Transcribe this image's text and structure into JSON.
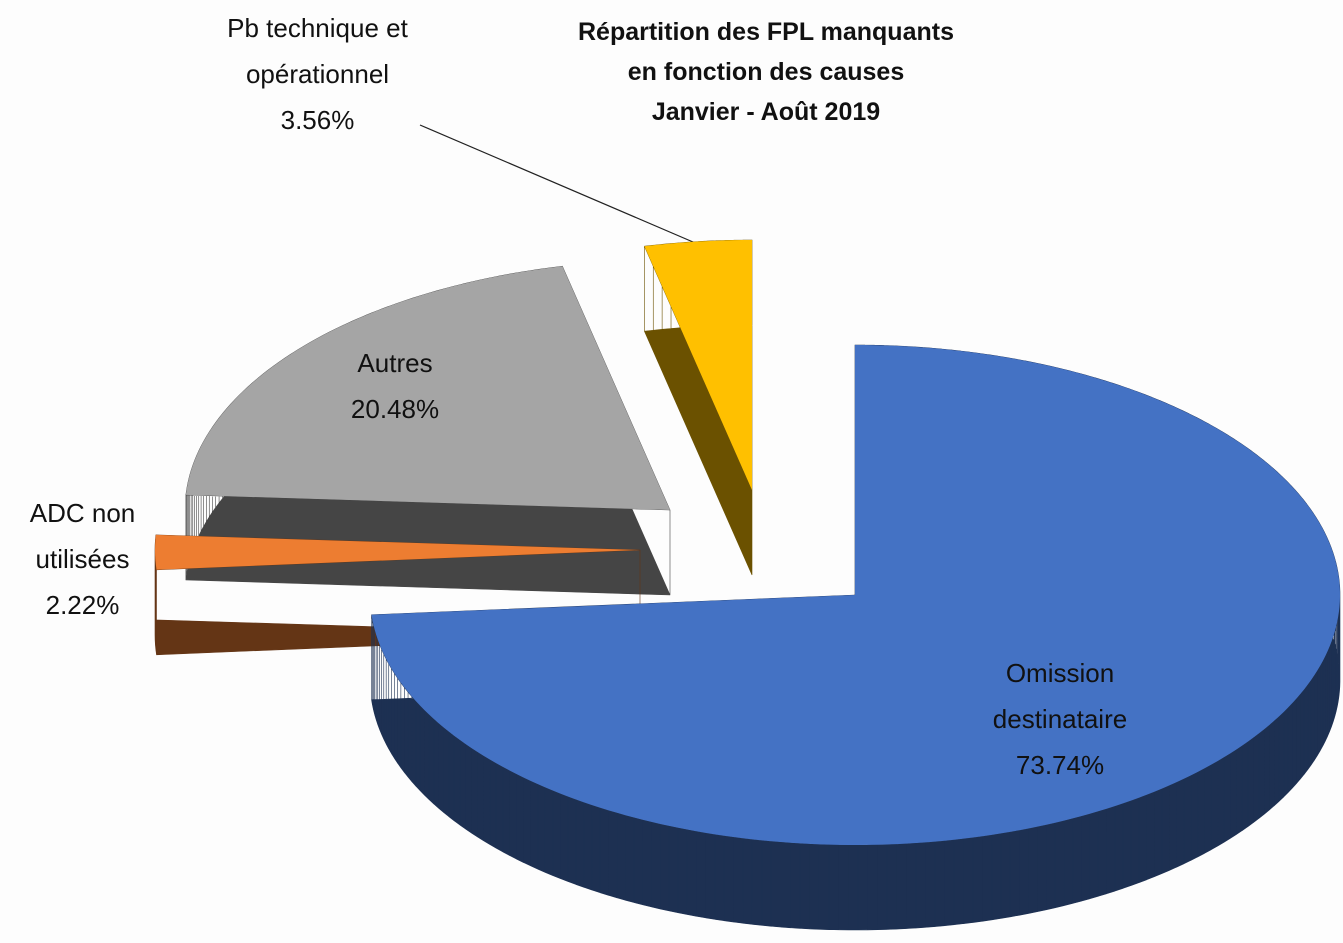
{
  "chart_data": {
    "type": "pie",
    "title": [
      "Répartition des FPL manquants",
      "en fonction des causes",
      "Janvier - Août 2019"
    ],
    "categories": [
      "Omission destinataire",
      "ADC non utilisées",
      "Autres",
      "Pb technique et opérationnel"
    ],
    "values": [
      73.74,
      2.22,
      20.48,
      3.56
    ],
    "value_labels": [
      "73.74%",
      "2.22%",
      "20.48%",
      "3.56%"
    ],
    "colors": [
      "#4472c4",
      "#ed7d31",
      "#a5a5a5",
      "#ffc000"
    ]
  }
}
